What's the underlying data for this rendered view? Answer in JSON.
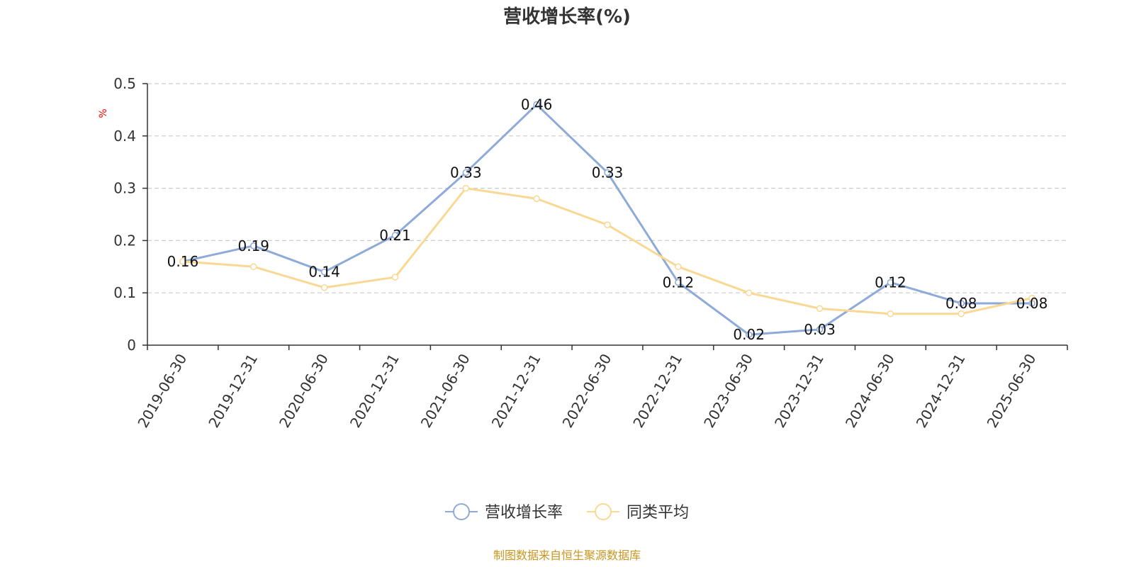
{
  "chart_data": {
    "type": "line",
    "title": "营收增长率(%)",
    "ylabel": "%",
    "ylim": [
      0,
      0.5
    ],
    "yticks": [
      "0",
      "0.1",
      "0.2",
      "0.3",
      "0.4",
      "0.5"
    ],
    "ytick_values": [
      0,
      0.1,
      0.2,
      0.3,
      0.4,
      0.5
    ],
    "grid": true,
    "legend_position": "bottom-center",
    "categories": [
      "2019-06-30",
      "2019-12-31",
      "2020-06-30",
      "2020-12-31",
      "2021-06-30",
      "2021-12-31",
      "2022-06-30",
      "2022-12-31",
      "2023-06-30",
      "2023-12-31",
      "2024-06-30",
      "2024-12-31",
      "2025-06-30"
    ],
    "series": [
      {
        "name": "营收增长率",
        "color": "#8eaad8",
        "values": [
          0.16,
          0.19,
          0.14,
          0.21,
          0.33,
          0.46,
          0.33,
          0.12,
          0.02,
          0.03,
          0.12,
          0.08,
          0.08
        ],
        "labels": [
          "0.16",
          "0.19",
          "0.14",
          "0.21",
          "0.33",
          "0.46",
          "0.33",
          "0.12",
          "0.02",
          "0.03",
          "0.12",
          "0.08",
          "0.08"
        ]
      },
      {
        "name": "同类平均",
        "color": "#f9d893",
        "values": [
          0.16,
          0.15,
          0.11,
          0.13,
          0.3,
          0.28,
          0.23,
          0.15,
          0.1,
          0.07,
          0.06,
          0.06,
          0.09
        ]
      }
    ],
    "source": "制图数据来自恒生聚源数据库"
  }
}
